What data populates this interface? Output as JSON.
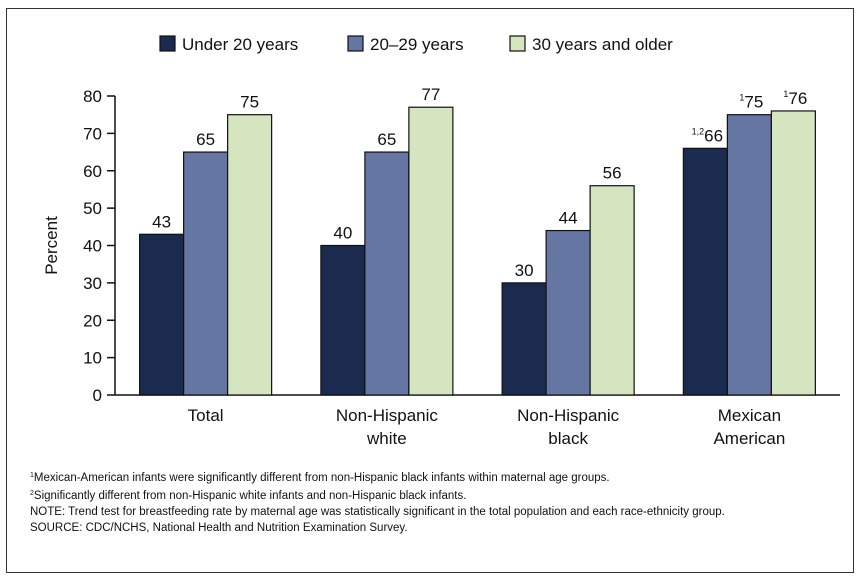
{
  "chart_data": {
    "type": "bar",
    "categories": [
      [
        "Total"
      ],
      [
        "Non-Hispanic",
        "white"
      ],
      [
        "Non-Hispanic",
        "black"
      ],
      [
        "Mexican",
        "American"
      ]
    ],
    "series": [
      {
        "name": "Under 20 years",
        "values": [
          43,
          40,
          30,
          66
        ],
        "color": "#1b2a4f"
      },
      {
        "name": "20–29 years",
        "values": [
          65,
          65,
          44,
          75
        ],
        "color": "#6676a3"
      },
      {
        "name": "30 years and older",
        "values": [
          75,
          77,
          56,
          76
        ],
        "color": "#d5e5c0"
      }
    ],
    "value_superscripts": [
      [
        "",
        "",
        "",
        "1,2"
      ],
      [
        "",
        "",
        "",
        "1"
      ],
      [
        "",
        "",
        "",
        "1"
      ]
    ],
    "ylabel": "Percent",
    "xlabel": "",
    "title": "",
    "ylim": [
      0,
      80
    ],
    "yticks": [
      0,
      10,
      20,
      30,
      40,
      50,
      60,
      70,
      80
    ],
    "legend_position": "top",
    "grid": false
  },
  "footnotes": [
    {
      "sup": "1",
      "text": "Mexican-American infants were significantly different from non-Hispanic black infants within maternal age groups."
    },
    {
      "sup": "2",
      "text": "Significantly different from non-Hispanic white infants and non-Hispanic black infants."
    },
    {
      "sup": "",
      "text": "NOTE: Trend test for breastfeeding rate by maternal age was statistically significant in the total population and each race-ethnicity group."
    },
    {
      "sup": "",
      "text": "SOURCE: CDC/NCHS, National Health and Nutrition Examination Survey."
    }
  ]
}
